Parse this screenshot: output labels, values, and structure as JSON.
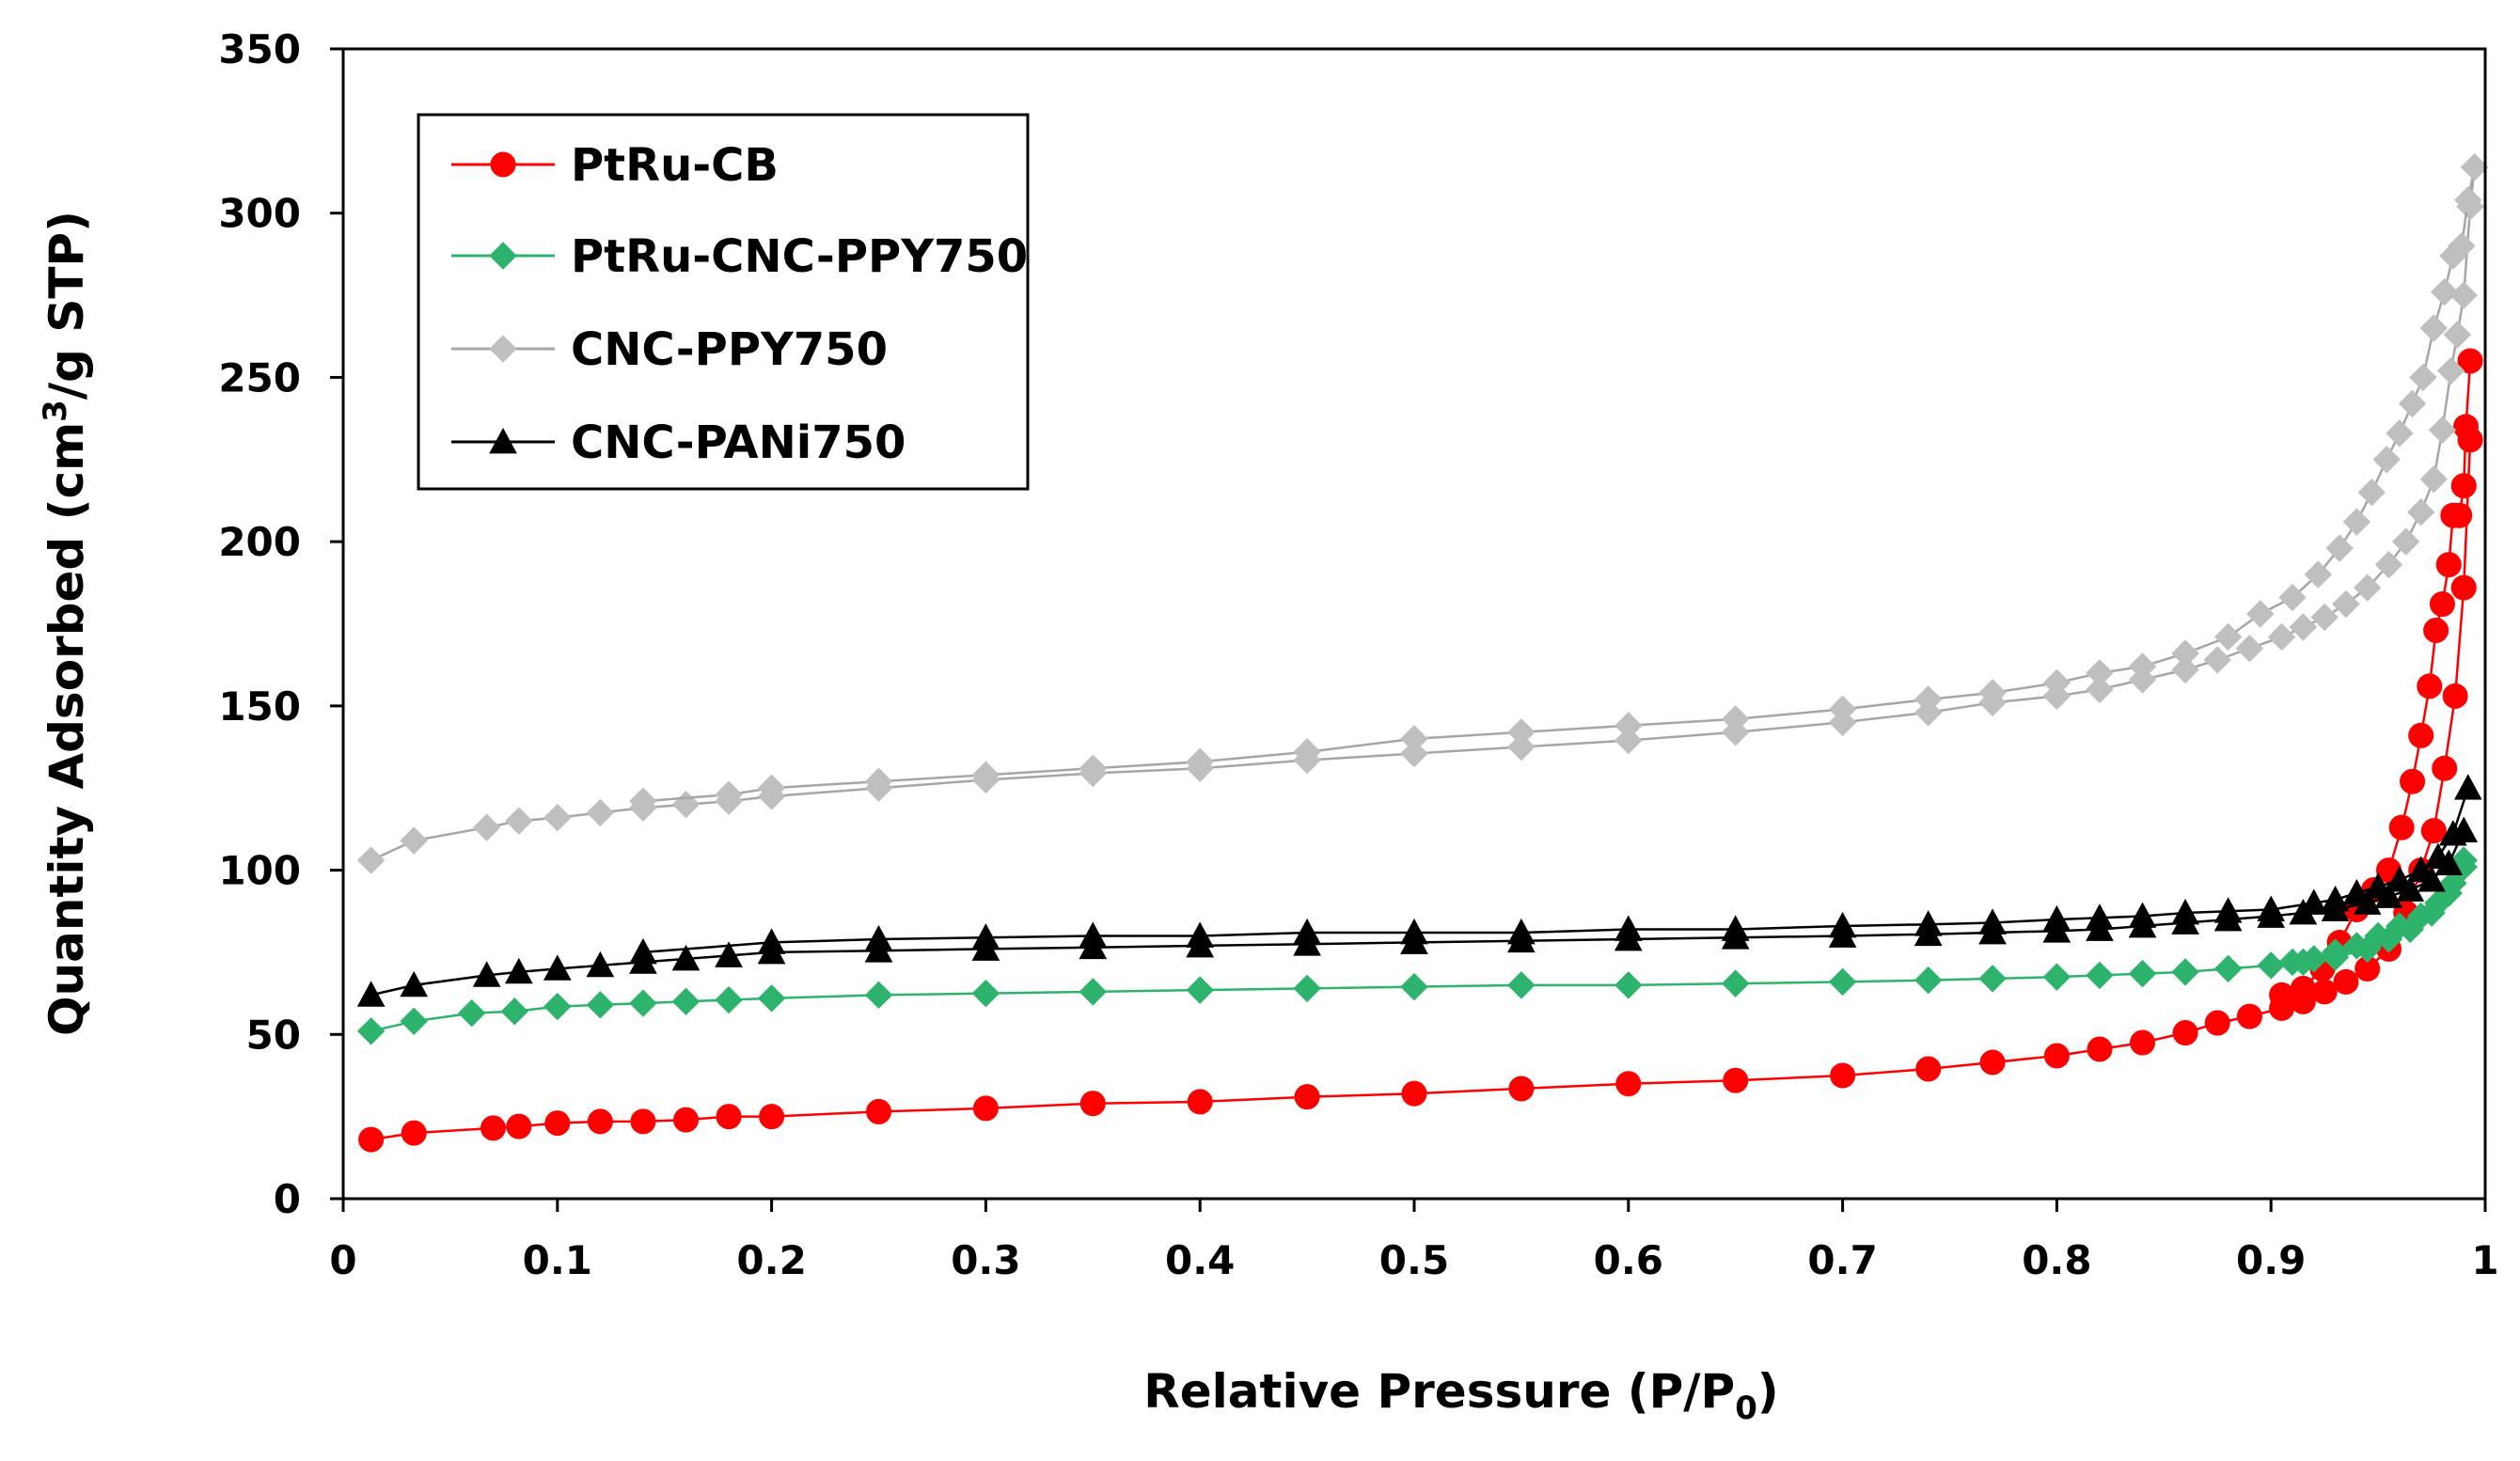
{
  "chart_data": {
    "type": "line",
    "title": "",
    "xlabel_parts": [
      "Relative Pressure (P/P",
      "0",
      ")"
    ],
    "ylabel_parts": [
      "Quantity Adsorbed (cm",
      "3",
      "/g STP)"
    ],
    "xlim": [
      0,
      1
    ],
    "ylim": [
      0,
      350
    ],
    "x_ticks": [
      "0",
      "0.1",
      "0.2",
      "0.3",
      "0.4",
      "0.5",
      "0.6",
      "0.7",
      "0.8",
      "0.9",
      "1"
    ],
    "y_ticks": [
      "0",
      "50",
      "100",
      "150",
      "200",
      "250",
      "300",
      "350"
    ],
    "grid": false,
    "legend_position": "top-left",
    "series": [
      {
        "name": "PtRu-CB",
        "color": "#ff0000",
        "marker": "circle",
        "adsorption": [
          [
            0.013,
            18
          ],
          [
            0.033,
            20
          ],
          [
            0.07,
            21.5
          ],
          [
            0.082,
            22
          ],
          [
            0.1,
            23
          ],
          [
            0.12,
            23.5
          ],
          [
            0.14,
            23.5
          ],
          [
            0.16,
            24
          ],
          [
            0.18,
            25
          ],
          [
            0.2,
            25
          ],
          [
            0.25,
            26.5
          ],
          [
            0.3,
            27.5
          ],
          [
            0.35,
            29
          ],
          [
            0.4,
            29.5
          ],
          [
            0.45,
            31
          ],
          [
            0.5,
            32
          ],
          [
            0.55,
            33.5
          ],
          [
            0.6,
            35
          ],
          [
            0.65,
            36
          ],
          [
            0.7,
            37.5
          ],
          [
            0.74,
            39.5
          ],
          [
            0.77,
            41.5
          ],
          [
            0.8,
            43.5
          ],
          [
            0.82,
            45.5
          ],
          [
            0.84,
            47.5
          ],
          [
            0.86,
            50.5
          ],
          [
            0.875,
            53.5
          ],
          [
            0.89,
            55.5
          ],
          [
            0.905,
            58
          ],
          [
            0.915,
            60
          ],
          [
            0.925,
            63
          ],
          [
            0.935,
            66
          ],
          [
            0.945,
            70
          ],
          [
            0.955,
            76
          ],
          [
            0.963,
            87
          ],
          [
            0.97,
            100
          ],
          [
            0.976,
            112
          ],
          [
            0.981,
            131
          ],
          [
            0.986,
            153
          ],
          [
            0.99,
            186
          ],
          [
            0.993,
            231
          ]
        ],
        "desorption": [
          [
            0.993,
            255
          ],
          [
            0.991,
            235
          ],
          [
            0.99,
            217
          ],
          [
            0.988,
            208
          ],
          [
            0.985,
            208
          ],
          [
            0.983,
            193
          ],
          [
            0.98,
            181
          ],
          [
            0.977,
            173
          ],
          [
            0.974,
            156
          ],
          [
            0.97,
            141
          ],
          [
            0.966,
            127
          ],
          [
            0.961,
            113
          ],
          [
            0.955,
            100
          ],
          [
            0.948,
            94
          ],
          [
            0.94,
            88
          ],
          [
            0.932,
            78
          ],
          [
            0.924,
            70
          ],
          [
            0.915,
            64
          ],
          [
            0.905,
            62
          ]
        ]
      },
      {
        "name": "PtRu-CNC-PPY750",
        "color": "#2db36b",
        "marker": "diamond",
        "adsorption": [
          [
            0.013,
            51
          ],
          [
            0.033,
            54
          ],
          [
            0.06,
            56.5
          ],
          [
            0.08,
            57
          ],
          [
            0.1,
            58.5
          ],
          [
            0.12,
            59
          ],
          [
            0.14,
            59.5
          ],
          [
            0.16,
            60
          ],
          [
            0.18,
            60.5
          ],
          [
            0.2,
            61
          ],
          [
            0.25,
            62
          ],
          [
            0.3,
            62.5
          ],
          [
            0.35,
            63
          ],
          [
            0.4,
            63.5
          ],
          [
            0.45,
            64
          ],
          [
            0.5,
            64.5
          ],
          [
            0.55,
            65
          ],
          [
            0.6,
            65
          ],
          [
            0.65,
            65.5
          ],
          [
            0.7,
            66
          ],
          [
            0.74,
            66.5
          ],
          [
            0.77,
            67
          ],
          [
            0.8,
            67.5
          ],
          [
            0.82,
            68
          ],
          [
            0.84,
            68.5
          ],
          [
            0.86,
            69
          ],
          [
            0.88,
            70
          ],
          [
            0.9,
            71
          ],
          [
            0.915,
            72
          ],
          [
            0.93,
            73.5
          ],
          [
            0.945,
            76
          ],
          [
            0.955,
            79
          ],
          [
            0.965,
            82
          ],
          [
            0.975,
            87
          ],
          [
            0.983,
            93
          ],
          [
            0.99,
            101
          ]
        ],
        "desorption": [
          [
            0.99,
            103
          ],
          [
            0.985,
            96
          ],
          [
            0.978,
            90
          ],
          [
            0.97,
            86
          ],
          [
            0.96,
            83
          ],
          [
            0.95,
            80
          ],
          [
            0.94,
            77
          ],
          [
            0.93,
            75
          ],
          [
            0.92,
            73
          ],
          [
            0.91,
            72
          ]
        ]
      },
      {
        "name": "CNC-PPY750",
        "color": "#bfbfbf",
        "marker": "diamond",
        "adsorption": [
          [
            0.013,
            103
          ],
          [
            0.033,
            109
          ],
          [
            0.067,
            113
          ],
          [
            0.082,
            115
          ],
          [
            0.1,
            116
          ],
          [
            0.12,
            117.5
          ],
          [
            0.14,
            119
          ],
          [
            0.16,
            120
          ],
          [
            0.18,
            121
          ],
          [
            0.2,
            122.5
          ],
          [
            0.25,
            125
          ],
          [
            0.3,
            127.5
          ],
          [
            0.35,
            129.5
          ],
          [
            0.4,
            131
          ],
          [
            0.45,
            133.5
          ],
          [
            0.5,
            135.5
          ],
          [
            0.55,
            137.5
          ],
          [
            0.6,
            139.5
          ],
          [
            0.65,
            142
          ],
          [
            0.7,
            145
          ],
          [
            0.74,
            148
          ],
          [
            0.77,
            151
          ],
          [
            0.8,
            153
          ],
          [
            0.82,
            155
          ],
          [
            0.84,
            158
          ],
          [
            0.86,
            161
          ],
          [
            0.875,
            164
          ],
          [
            0.89,
            167.5
          ],
          [
            0.905,
            171
          ],
          [
            0.915,
            174
          ],
          [
            0.925,
            177
          ],
          [
            0.935,
            181
          ],
          [
            0.945,
            186
          ],
          [
            0.955,
            193
          ],
          [
            0.963,
            200
          ],
          [
            0.97,
            209
          ],
          [
            0.976,
            219
          ],
          [
            0.98,
            234
          ],
          [
            0.984,
            252
          ],
          [
            0.987,
            263
          ],
          [
            0.99,
            275
          ],
          [
            0.993,
            302
          ],
          [
            0.995,
            314
          ]
        ],
        "desorption": [
          [
            0.995,
            314
          ],
          [
            0.992,
            304
          ],
          [
            0.989,
            290
          ],
          [
            0.985,
            287
          ],
          [
            0.981,
            276
          ],
          [
            0.976,
            265
          ],
          [
            0.971,
            250
          ],
          [
            0.966,
            242
          ],
          [
            0.96,
            233
          ],
          [
            0.954,
            225
          ],
          [
            0.947,
            215
          ],
          [
            0.94,
            206
          ],
          [
            0.932,
            198
          ],
          [
            0.922,
            190
          ],
          [
            0.91,
            183
          ],
          [
            0.895,
            178
          ],
          [
            0.88,
            171
          ],
          [
            0.86,
            166
          ],
          [
            0.84,
            162
          ],
          [
            0.82,
            160
          ],
          [
            0.8,
            157
          ],
          [
            0.77,
            154
          ],
          [
            0.74,
            152
          ],
          [
            0.7,
            149
          ],
          [
            0.65,
            146
          ],
          [
            0.6,
            144
          ],
          [
            0.55,
            142
          ],
          [
            0.5,
            140
          ],
          [
            0.45,
            136
          ],
          [
            0.4,
            133
          ],
          [
            0.35,
            131
          ],
          [
            0.3,
            129
          ],
          [
            0.25,
            127
          ],
          [
            0.2,
            125
          ],
          [
            0.18,
            123
          ],
          [
            0.14,
            121
          ]
        ]
      },
      {
        "name": "CNC-PANi750",
        "color": "#000000",
        "marker": "triangle",
        "adsorption": [
          [
            0.013,
            62
          ],
          [
            0.033,
            65
          ],
          [
            0.067,
            68
          ],
          [
            0.082,
            69
          ],
          [
            0.1,
            70
          ],
          [
            0.12,
            71
          ],
          [
            0.14,
            72
          ],
          [
            0.16,
            73
          ],
          [
            0.18,
            74
          ],
          [
            0.2,
            75
          ],
          [
            0.25,
            75.5
          ],
          [
            0.3,
            76
          ],
          [
            0.35,
            76.5
          ],
          [
            0.4,
            77
          ],
          [
            0.45,
            77.5
          ],
          [
            0.5,
            78
          ],
          [
            0.55,
            78.5
          ],
          [
            0.6,
            79
          ],
          [
            0.65,
            79.5
          ],
          [
            0.7,
            80
          ],
          [
            0.74,
            80.5
          ],
          [
            0.77,
            81
          ],
          [
            0.8,
            81.5
          ],
          [
            0.82,
            82
          ],
          [
            0.84,
            83
          ],
          [
            0.86,
            84
          ],
          [
            0.88,
            85
          ],
          [
            0.9,
            86
          ],
          [
            0.915,
            87
          ],
          [
            0.93,
            88
          ],
          [
            0.945,
            90
          ],
          [
            0.955,
            92
          ],
          [
            0.965,
            94
          ],
          [
            0.975,
            97
          ],
          [
            0.983,
            102
          ],
          [
            0.99,
            112
          ]
        ],
        "desorption": [
          [
            0.992,
            125
          ],
          [
            0.985,
            111
          ],
          [
            0.978,
            104
          ],
          [
            0.97,
            100
          ],
          [
            0.96,
            97
          ],
          [
            0.95,
            95
          ],
          [
            0.94,
            93
          ],
          [
            0.93,
            91
          ],
          [
            0.92,
            90
          ],
          [
            0.9,
            88
          ],
          [
            0.88,
            87.5
          ],
          [
            0.86,
            87
          ],
          [
            0.84,
            86
          ],
          [
            0.82,
            85.5
          ],
          [
            0.8,
            85
          ],
          [
            0.77,
            84
          ],
          [
            0.74,
            83.5
          ],
          [
            0.7,
            83
          ],
          [
            0.65,
            82
          ],
          [
            0.6,
            82
          ],
          [
            0.55,
            81
          ],
          [
            0.5,
            81
          ],
          [
            0.45,
            81
          ],
          [
            0.4,
            80
          ],
          [
            0.35,
            80
          ],
          [
            0.3,
            79.5
          ],
          [
            0.25,
            79
          ],
          [
            0.2,
            78
          ],
          [
            0.14,
            75
          ]
        ]
      }
    ]
  }
}
